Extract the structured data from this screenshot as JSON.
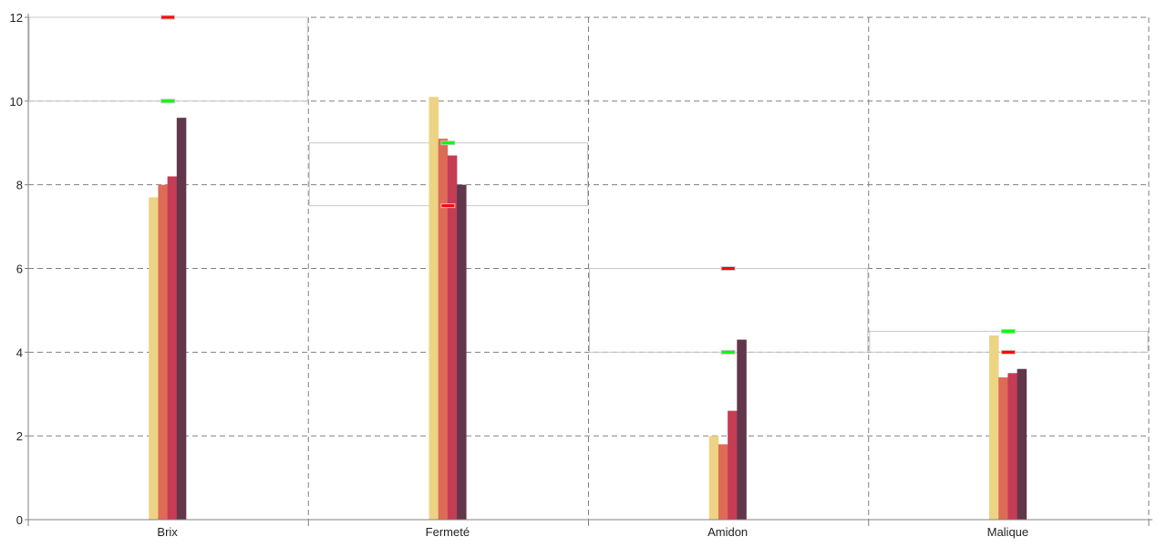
{
  "chart_data": {
    "type": "bar",
    "title": "",
    "xlabel": "",
    "ylabel": "",
    "ylim": [
      0,
      12
    ],
    "yticks": [
      "0",
      "2",
      "4",
      "6",
      "8",
      "10",
      "12"
    ],
    "grid": true,
    "categories": [
      "Brix",
      "Fermeté",
      "Amidon",
      "Malique"
    ],
    "series": [
      {
        "color": "#edd384",
        "values": [
          7.7,
          10.1,
          2.0,
          4.4
        ]
      },
      {
        "color": "#dd6b56",
        "values": [
          8.0,
          9.1,
          1.8,
          3.4
        ]
      },
      {
        "color": "#c53c55",
        "values": [
          8.2,
          8.7,
          2.6,
          3.5
        ]
      },
      {
        "color": "#62364b",
        "values": [
          9.6,
          8.0,
          4.3,
          3.6
        ]
      }
    ],
    "markers": {
      "green": {
        "color": "#00ff00",
        "values": [
          10,
          9,
          4,
          4.5
        ]
      },
      "red": {
        "color": "#ff0000",
        "values": [
          12,
          7.5,
          6,
          4
        ]
      }
    }
  }
}
